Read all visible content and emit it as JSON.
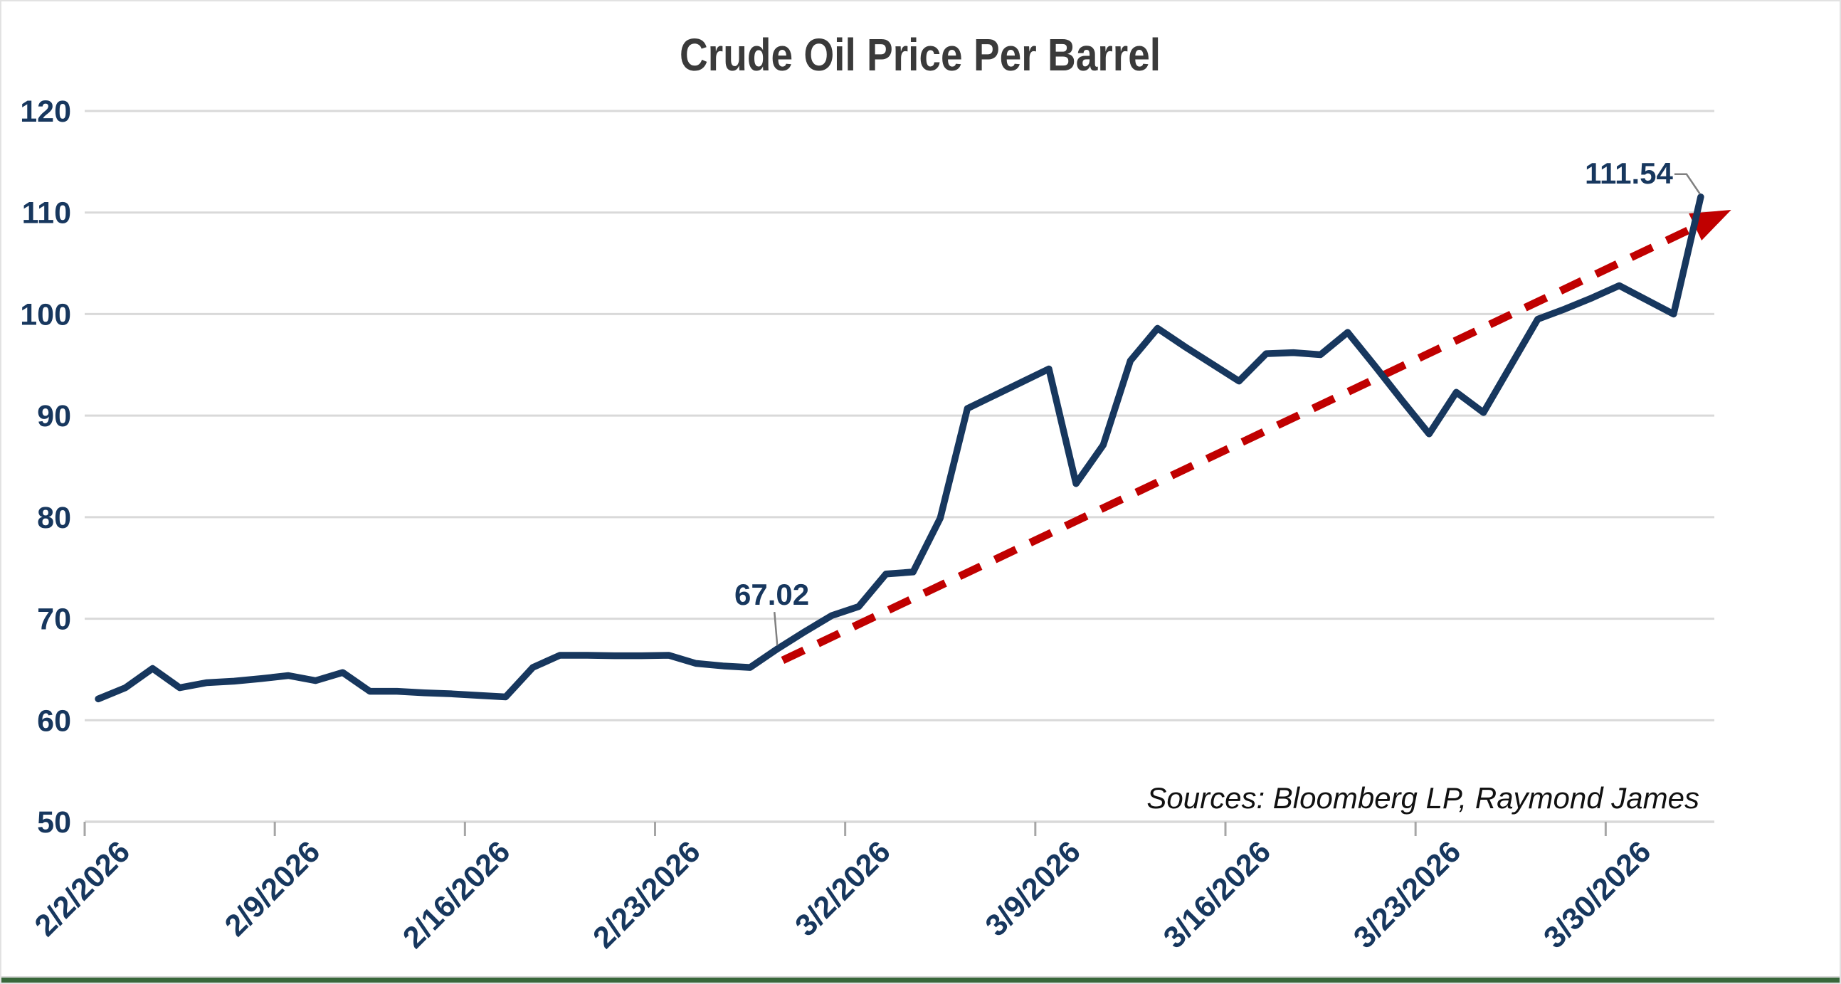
{
  "title": "Crude Oil Price Per Barrel",
  "source_note": "Sources: Bloomberg LP, Raymond James",
  "annotations": [
    {
      "label": "67.02",
      "index": 25,
      "value": 67.02
    },
    {
      "label": "111.54",
      "index": 59,
      "value": 111.54
    }
  ],
  "colors": {
    "series_line": "#17375e",
    "trendline": "#c00000",
    "axis_label": "#17375e",
    "gridline": "#d9d9d9",
    "tick_mark": "#a6a6a6",
    "leader_line": "#808080",
    "title_text": "#3a3a3a",
    "bottom_bar": "#38673a"
  },
  "chart_data": {
    "type": "line",
    "title": "Crude Oil Price Per Barrel",
    "xlabel": "",
    "ylabel": "",
    "ylim": [
      50,
      120
    ],
    "y_ticks": [
      50,
      60,
      70,
      80,
      90,
      100,
      110,
      120
    ],
    "x_tick_labels": [
      "2/2/2026",
      "2/9/2026",
      "2/16/2026",
      "2/23/2026",
      "3/2/2026",
      "3/9/2026",
      "3/16/2026",
      "3/23/2026",
      "3/30/2026"
    ],
    "grid": "horizontal",
    "legend": "none",
    "categories": [
      "2/2/2026",
      "2/3/2026",
      "2/4/2026",
      "2/5/2026",
      "2/6/2026",
      "2/7/2026",
      "2/8/2026",
      "2/9/2026",
      "2/10/2026",
      "2/11/2026",
      "2/12/2026",
      "2/13/2026",
      "2/14/2026",
      "2/15/2026",
      "2/16/2026",
      "2/17/2026",
      "2/18/2026",
      "2/19/2026",
      "2/20/2026",
      "2/21/2026",
      "2/22/2026",
      "2/23/2026",
      "2/24/2026",
      "2/25/2026",
      "2/26/2026",
      "2/27/2026",
      "2/28/2026",
      "3/1/2026",
      "3/2/2026",
      "3/3/2026",
      "3/4/2026",
      "3/5/2026",
      "3/6/2026",
      "3/7/2026",
      "3/8/2026",
      "3/9/2026",
      "3/10/2026",
      "3/11/2026",
      "3/12/2026",
      "3/13/2026",
      "3/14/2026",
      "3/15/2026",
      "3/16/2026",
      "3/17/2026",
      "3/18/2026",
      "3/19/2026",
      "3/20/2026",
      "3/21/2026",
      "3/22/2026",
      "3/23/2026",
      "3/24/2026",
      "3/25/2026",
      "3/26/2026",
      "3/27/2026",
      "3/28/2026",
      "3/29/2026",
      "3/30/2026",
      "3/31/2026",
      "4/1/2026",
      "4/2/2026"
    ],
    "series": [
      {
        "name": "Crude Oil Price Per Barrel",
        "color": "#17375e",
        "values": [
          62.1,
          63.2,
          65.1,
          63.2,
          63.7,
          63.85,
          64.1,
          64.4,
          63.9,
          64.7,
          62.85,
          62.85,
          62.7,
          62.6,
          62.45,
          62.3,
          65.2,
          66.4,
          66.4,
          66.35,
          66.35,
          66.4,
          65.6,
          65.35,
          65.2,
          67.02,
          68.7,
          70.3,
          71.2,
          74.4,
          74.6,
          79.9,
          90.7,
          92.0,
          93.3,
          94.6,
          83.3,
          87.1,
          95.4,
          98.6,
          96.8,
          95.1,
          93.4,
          96.1,
          96.2,
          96.0,
          98.2,
          94.9,
          91.5,
          88.2,
          92.3,
          90.3,
          94.9,
          99.5,
          100.5,
          101.6,
          102.8,
          101.4,
          100.0,
          111.54
        ]
      }
    ],
    "trendline": {
      "style": "dashed",
      "color": "#c00000",
      "arrow": true,
      "start": {
        "index": 25.2,
        "value": 65.9
      },
      "end": {
        "index": 59.6,
        "value": 109.6
      }
    }
  }
}
